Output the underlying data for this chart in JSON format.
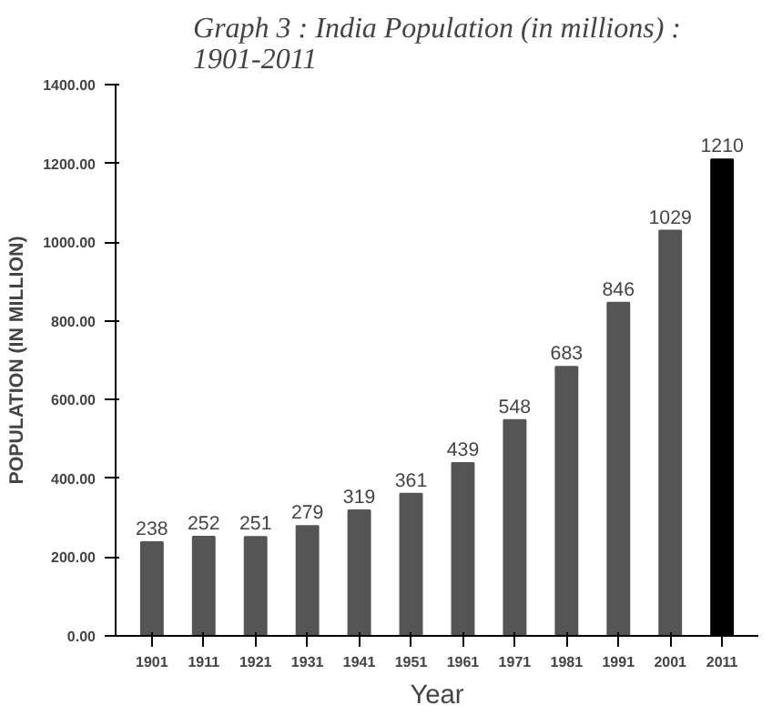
{
  "chart_data": {
    "type": "bar",
    "title": "Graph 3 : India Population (in millions) :\n1901-2011",
    "xlabel": "Year",
    "ylabel": "POPULATION (IN MILLION)",
    "categories": [
      "1901",
      "1911",
      "1921",
      "1931",
      "1941",
      "1951",
      "1961",
      "1971",
      "1981",
      "1991",
      "2001",
      "2011"
    ],
    "values": [
      238,
      252,
      251,
      279,
      319,
      361,
      439,
      548,
      683,
      846,
      1029,
      1210
    ],
    "colors": [
      "#555555",
      "#555555",
      "#555555",
      "#555555",
      "#555555",
      "#555555",
      "#555555",
      "#555555",
      "#555555",
      "#555555",
      "#555555",
      "#000000"
    ],
    "data_labels": true,
    "ylim": [
      0,
      1400
    ],
    "yticks": [
      {
        "value": 0,
        "label": "0.00"
      },
      {
        "value": 200,
        "label": "200.00"
      },
      {
        "value": 400,
        "label": "400.00"
      },
      {
        "value": 600,
        "label": "600.00"
      },
      {
        "value": 800,
        "label": "800.00"
      },
      {
        "value": 1000,
        "label": "1000.00"
      },
      {
        "value": 1200,
        "label": "1200.00"
      },
      {
        "value": 1400,
        "label": "1400.00"
      }
    ],
    "grid": false
  }
}
